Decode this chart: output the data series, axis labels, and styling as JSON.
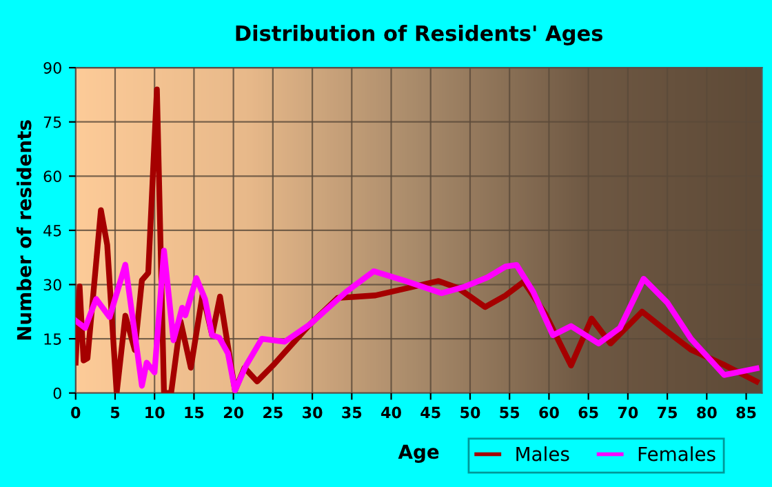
{
  "chart_data": {
    "type": "line",
    "title": "Distribution of Residents' Ages",
    "xlabel": "Age",
    "ylabel": "Number of residents",
    "series": [
      {
        "name": "Males",
        "color": "#a50000",
        "x": [
          0,
          0.5,
          1,
          1.5,
          3.2,
          4,
          5.2,
          6.3,
          7.5,
          8.4,
          9.2,
          10.3,
          11.2,
          12.1,
          13.3,
          14.6,
          16.1,
          17.3,
          18.3,
          20.2,
          21.4,
          23,
          25,
          29.7,
          33.2,
          38,
          42,
          46,
          48.5,
          51.9,
          54.5,
          56.8,
          59.5,
          62.8,
          65.4,
          67.8,
          71.8,
          75,
          78,
          82,
          86.3
        ],
        "values": [
          8.4,
          29.5,
          9,
          9.6,
          50.6,
          41,
          0,
          21.4,
          11.9,
          31.2,
          33.2,
          84,
          0,
          0,
          19.8,
          7,
          27.4,
          16,
          26.7,
          0.7,
          7,
          3.2,
          7.6,
          19,
          26.3,
          27,
          29,
          31,
          29,
          23.8,
          27,
          30.8,
          22,
          7.6,
          20.6,
          13.7,
          22.5,
          17,
          12,
          8,
          3.2
        ]
      },
      {
        "name": "Females",
        "color": "#ff00ff",
        "x": [
          0,
          1.2,
          2.6,
          4.3,
          6.3,
          8.4,
          9,
          10,
          11.2,
          12.4,
          13.5,
          13.9,
          15.3,
          16.4,
          17.3,
          18.2,
          19.3,
          20.2,
          21.6,
          23.6,
          26.5,
          29.7,
          34.3,
          37.8,
          41.8,
          46.4,
          49.3,
          52.2,
          54.5,
          55.9,
          58,
          60.5,
          62.8,
          66.3,
          69,
          72,
          75,
          78,
          82.2,
          86.3
        ],
        "values": [
          20,
          18,
          26,
          21,
          35.5,
          2,
          8.4,
          5.7,
          39.4,
          14.6,
          23.6,
          21.5,
          31.8,
          26,
          16,
          15.3,
          11,
          0.7,
          7.6,
          15,
          14.2,
          19,
          28,
          33.7,
          31,
          27.6,
          29.4,
          32,
          35,
          35.4,
          28,
          16,
          18.5,
          13.7,
          18,
          31.6,
          25,
          15,
          5,
          6.8
        ]
      }
    ],
    "xlim": [
      0,
      87
    ],
    "xticks": [
      {
        "value": 0,
        "label": "0"
      },
      5,
      10,
      15,
      20,
      25,
      30,
      35,
      40,
      45,
      50,
      55,
      60,
      65,
      70,
      75,
      80,
      85
    ],
    "ylim": [
      0,
      90
    ],
    "yticks": [
      0,
      15,
      30,
      45,
      60,
      75,
      90
    ],
    "grid": true,
    "legend": "bottom right",
    "marker": "none",
    "line_style": "solid"
  }
}
